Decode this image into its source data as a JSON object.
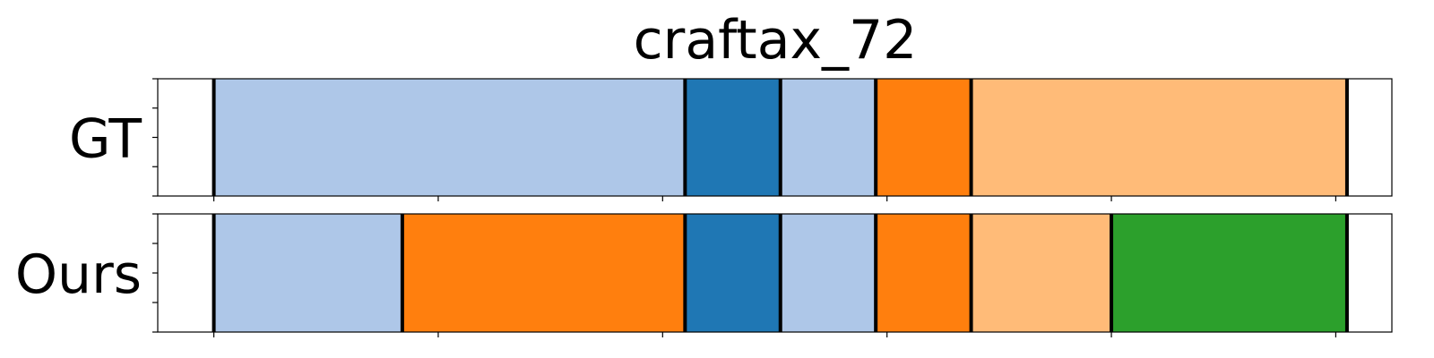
{
  "chart_data": {
    "type": "segmentation-timeline",
    "title": "craftax_72",
    "xlim": [
      0,
      110
    ],
    "rows": [
      {
        "label": "GT",
        "segments": [
          {
            "start": 5,
            "end": 47,
            "color": "#aec7e8"
          },
          {
            "start": 47,
            "end": 55.5,
            "color": "#1f77b4"
          },
          {
            "start": 55.5,
            "end": 64,
            "color": "#aec7e8"
          },
          {
            "start": 64,
            "end": 72.5,
            "color": "#ff7f0e"
          },
          {
            "start": 72.5,
            "end": 106,
            "color": "#ffbb78"
          }
        ]
      },
      {
        "label": "Ours",
        "segments": [
          {
            "start": 5,
            "end": 21.8,
            "color": "#aec7e8"
          },
          {
            "start": 21.8,
            "end": 47,
            "color": "#ff7f0e"
          },
          {
            "start": 47,
            "end": 55.5,
            "color": "#1f77b4"
          },
          {
            "start": 55.5,
            "end": 64,
            "color": "#aec7e8"
          },
          {
            "start": 64,
            "end": 72.5,
            "color": "#ff7f0e"
          },
          {
            "start": 72.5,
            "end": 85,
            "color": "#ffbb78"
          },
          {
            "start": 85,
            "end": 106,
            "color": "#2ca02c"
          }
        ]
      }
    ],
    "x_ticks": [
      5,
      25,
      45,
      65,
      85,
      105
    ],
    "y_ticks_per_row": 5,
    "grid": false
  }
}
